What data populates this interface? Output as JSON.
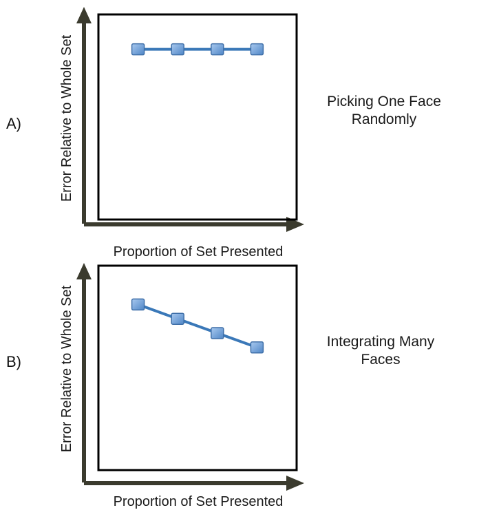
{
  "chart_data": [
    {
      "type": "line",
      "panel_label": "A)",
      "side_label_lines": [
        "Picking One Face",
        "Randomly"
      ],
      "xlabel": "Proportion of Set Presented",
      "ylabel": "Error Relative to Whole Set",
      "series": [
        {
          "values": [
            0.83,
            0.83,
            0.83,
            0.83
          ]
        }
      ],
      "x": [
        1,
        2,
        3,
        4
      ],
      "xlim": [
        0,
        5
      ],
      "ylim": [
        0,
        1
      ],
      "grid": false,
      "line_color": "#3a78b8",
      "marker_color": "#6a9fd8"
    },
    {
      "type": "line",
      "panel_label": "B)",
      "side_label_lines": [
        "Integrating Many",
        "Faces"
      ],
      "xlabel": "Proportion of Set Presented",
      "ylabel": "Error Relative to Whole Set",
      "series": [
        {
          "values": [
            0.81,
            0.74,
            0.67,
            0.6
          ]
        }
      ],
      "x": [
        1,
        2,
        3,
        4
      ],
      "xlim": [
        0,
        5
      ],
      "ylim": [
        0,
        1
      ],
      "grid": false,
      "line_color": "#3a78b8",
      "marker_color": "#6a9fd8"
    }
  ],
  "colors": {
    "axis_arrow": "#3b3b2e",
    "frame": "#000000"
  }
}
